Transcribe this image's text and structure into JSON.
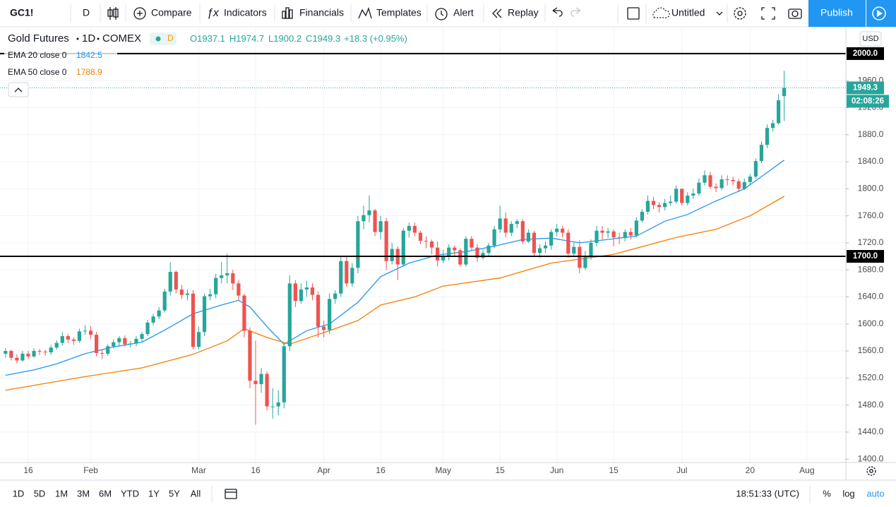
{
  "toolbar": {
    "symbol": "GC1!",
    "interval": "D",
    "compare": "Compare",
    "indicators": "Indicators",
    "financials": "Financials",
    "templates": "Templates",
    "alert": "Alert",
    "replay": "Replay",
    "layout_name": "Untitled",
    "publish": "Publish"
  },
  "bottom_bar": {
    "timeframes": [
      "1D",
      "5D",
      "1M",
      "3M",
      "6M",
      "YTD",
      "1Y",
      "5Y",
      "All"
    ],
    "clock": "18:51:33 (UTC)",
    "percent": "%",
    "log": "log",
    "auto": "auto"
  },
  "chart_data": {
    "type": "candlestick",
    "title": "Gold Futures",
    "interval": "1D",
    "exchange": "COMEX",
    "status_badge": "D",
    "currency": "USD",
    "ohlc_labels": [
      "O",
      "H",
      "L",
      "C"
    ],
    "change_text": "+18.3 (+0.95%)",
    "countdown": "02:08:26",
    "up_color": "#26a69a",
    "down_color": "#ef5350",
    "categories": [
      "Jan 10",
      "Jan 13",
      "Jan 14",
      "Jan 15",
      "Jan 16",
      "Jan 17",
      "Jan 21",
      "Jan 22",
      "Jan 23",
      "Jan 24",
      "Jan 27",
      "Jan 28",
      "Jan 29",
      "Jan 30",
      "Jan 31",
      "Feb 3",
      "Feb 4",
      "Feb 5",
      "Feb 6",
      "Feb 7",
      "Feb 10",
      "Feb 11",
      "Feb 12",
      "Feb 13",
      "Feb 14",
      "Feb 18",
      "Feb 19",
      "Feb 20",
      "Feb 21",
      "Feb 24",
      "Feb 25",
      "Feb 26",
      "Feb 27",
      "Feb 28",
      "Mar 2",
      "Mar 3",
      "Mar 4",
      "Mar 5",
      "Mar 6",
      "Mar 9",
      "Mar 10",
      "Mar 11",
      "Mar 12",
      "Mar 13",
      "Mar 16",
      "Mar 17",
      "Mar 18",
      "Mar 19",
      "Mar 20",
      "Mar 23",
      "Mar 24",
      "Mar 25",
      "Mar 26",
      "Mar 27",
      "Mar 30",
      "Mar 31",
      "Apr 1",
      "Apr 2",
      "Apr 3",
      "Apr 6",
      "Apr 7",
      "Apr 8",
      "Apr 9",
      "Apr 13",
      "Apr 14",
      "Apr 15",
      "Apr 16",
      "Apr 17",
      "Apr 20",
      "Apr 21",
      "Apr 22",
      "Apr 23",
      "Apr 24",
      "Apr 27",
      "Apr 28",
      "Apr 29",
      "Apr 30",
      "May 1",
      "May 4",
      "May 5",
      "May 6",
      "May 7",
      "May 8",
      "May 11",
      "May 12",
      "May 13",
      "May 14",
      "May 15",
      "May 18",
      "May 19",
      "May 20",
      "May 21",
      "May 22",
      "May 26",
      "May 27",
      "May 28",
      "May 29",
      "Jun 1",
      "Jun 2",
      "Jun 3",
      "Jun 4",
      "Jun 5",
      "Jun 8",
      "Jun 9",
      "Jun 10",
      "Jun 11",
      "Jun 12",
      "Jun 15",
      "Jun 16",
      "Jun 17",
      "Jun 18",
      "Jun 19",
      "Jun 22",
      "Jun 23",
      "Jun 24",
      "Jun 25",
      "Jun 26",
      "Jun 29",
      "Jun 30",
      "Jul 1",
      "Jul 2",
      "Jul 6",
      "Jul 7",
      "Jul 8",
      "Jul 9",
      "Jul 10",
      "Jul 13",
      "Jul 14",
      "Jul 15",
      "Jul 16",
      "Jul 17",
      "Jul 20",
      "Jul 21",
      "Jul 22",
      "Jul 23",
      "Jul 24",
      "Jul 27",
      "Jul 28",
      "Jul 29",
      "Jul 30",
      "Jul 31",
      "Aug 3"
    ],
    "open": [
      1556,
      1560,
      1550,
      1546,
      1556,
      1552,
      1560,
      1559,
      1558,
      1565,
      1572,
      1582,
      1577,
      1575,
      1589,
      1590,
      1584,
      1557,
      1556,
      1567,
      1573,
      1579,
      1570,
      1571,
      1578,
      1585,
      1602,
      1611,
      1620,
      1648,
      1677,
      1651,
      1643,
      1645,
      1566,
      1588,
      1641,
      1644,
      1668,
      1672,
      1675,
      1660,
      1642,
      1590,
      1516,
      1511,
      1526,
      1478,
      1478,
      1484,
      1567,
      1660,
      1634,
      1651,
      1654,
      1643,
      1596,
      1591,
      1637,
      1645,
      1693,
      1660,
      1683,
      1752,
      1761,
      1768,
      1736,
      1752,
      1693,
      1711,
      1688,
      1738,
      1745,
      1735,
      1723,
      1722,
      1713,
      1694,
      1700,
      1713,
      1709,
      1688,
      1726,
      1713,
      1698,
      1705,
      1716,
      1740,
      1756,
      1735,
      1748,
      1752,
      1722,
      1735,
      1705,
      1712,
      1716,
      1736,
      1741,
      1735,
      1704,
      1714,
      1683,
      1699,
      1720,
      1738,
      1735,
      1737,
      1728,
      1727,
      1736,
      1731,
      1753,
      1766,
      1782,
      1776,
      1773,
      1779,
      1781,
      1800,
      1779,
      1790,
      1793,
      1809,
      1820,
      1803,
      1801,
      1814,
      1813,
      1811,
      1800,
      1810,
      1818,
      1841,
      1865,
      1890,
      1897,
      1937.1,
      null,
      null,
      null,
      null
    ],
    "high": [
      1564,
      1562,
      1555,
      1560,
      1560,
      1564,
      1563,
      1562,
      1569,
      1576,
      1588,
      1585,
      1580,
      1593,
      1598,
      1597,
      1588,
      1562,
      1570,
      1577,
      1582,
      1583,
      1575,
      1582,
      1588,
      1606,
      1615,
      1625,
      1652,
      1691,
      1679,
      1658,
      1651,
      1650,
      1596,
      1645,
      1652,
      1674,
      1692,
      1704,
      1680,
      1665,
      1645,
      1595,
      1575,
      1535,
      1530,
      1505,
      1502,
      1570,
      1672,
      1665,
      1660,
      1664,
      1660,
      1648,
      1605,
      1645,
      1650,
      1700,
      1700,
      1690,
      1760,
      1775,
      1790,
      1770,
      1760,
      1757,
      1720,
      1715,
      1742,
      1750,
      1750,
      1738,
      1730,
      1725,
      1722,
      1710,
      1718,
      1716,
      1712,
      1730,
      1730,
      1718,
      1710,
      1720,
      1745,
      1775,
      1765,
      1752,
      1755,
      1755,
      1740,
      1738,
      1718,
      1722,
      1740,
      1748,
      1745,
      1740,
      1720,
      1724,
      1708,
      1725,
      1745,
      1745,
      1742,
      1740,
      1735,
      1740,
      1742,
      1758,
      1770,
      1790,
      1788,
      1780,
      1785,
      1790,
      1805,
      1800,
      1795,
      1800,
      1815,
      1827,
      1825,
      1808,
      1820,
      1820,
      1818,
      1815,
      1815,
      1822,
      1845,
      1870,
      1895,
      1902,
      1940,
      1974.7,
      null,
      null,
      null,
      null
    ],
    "low": [
      1550,
      1546,
      1542,
      1544,
      1548,
      1550,
      1554,
      1553,
      1554,
      1562,
      1568,
      1572,
      1569,
      1572,
      1584,
      1578,
      1552,
      1548,
      1553,
      1564,
      1568,
      1566,
      1565,
      1567,
      1574,
      1582,
      1598,
      1607,
      1617,
      1642,
      1645,
      1637,
      1635,
      1562,
      1562,
      1582,
      1635,
      1638,
      1660,
      1660,
      1650,
      1635,
      1580,
      1505,
      1451,
      1498,
      1472,
      1460,
      1465,
      1475,
      1560,
      1625,
      1630,
      1640,
      1635,
      1580,
      1580,
      1585,
      1630,
      1640,
      1655,
      1655,
      1675,
      1740,
      1750,
      1730,
      1725,
      1680,
      1688,
      1665,
      1685,
      1728,
      1730,
      1718,
      1712,
      1703,
      1685,
      1690,
      1694,
      1700,
      1685,
      1685,
      1708,
      1692,
      1695,
      1700,
      1712,
      1735,
      1728,
      1730,
      1742,
      1718,
      1720,
      1700,
      1698,
      1705,
      1710,
      1730,
      1728,
      1698,
      1700,
      1675,
      1680,
      1695,
      1715,
      1725,
      1727,
      1715,
      1718,
      1722,
      1725,
      1728,
      1750,
      1762,
      1770,
      1765,
      1768,
      1775,
      1778,
      1775,
      1775,
      1785,
      1790,
      1805,
      1800,
      1795,
      1798,
      1805,
      1805,
      1795,
      1798,
      1805,
      1815,
      1838,
      1860,
      1885,
      1895,
      1900.2,
      null,
      null,
      null,
      null
    ],
    "close": [
      1560,
      1550,
      1546,
      1556,
      1552,
      1560,
      1559,
      1558,
      1565,
      1572,
      1582,
      1577,
      1575,
      1589,
      1590,
      1584,
      1557,
      1556,
      1567,
      1573,
      1579,
      1570,
      1571,
      1578,
      1585,
      1602,
      1611,
      1620,
      1648,
      1677,
      1651,
      1643,
      1645,
      1566,
      1588,
      1641,
      1644,
      1668,
      1672,
      1675,
      1660,
      1642,
      1590,
      1516,
      1511,
      1526,
      1478,
      1478,
      1484,
      1567,
      1660,
      1634,
      1651,
      1654,
      1643,
      1596,
      1591,
      1637,
      1645,
      1693,
      1660,
      1683,
      1752,
      1761,
      1768,
      1736,
      1752,
      1693,
      1711,
      1688,
      1738,
      1745,
      1735,
      1723,
      1722,
      1713,
      1694,
      1700,
      1713,
      1709,
      1688,
      1726,
      1713,
      1698,
      1705,
      1716,
      1740,
      1756,
      1735,
      1748,
      1752,
      1722,
      1735,
      1705,
      1712,
      1716,
      1736,
      1741,
      1735,
      1704,
      1714,
      1683,
      1699,
      1720,
      1738,
      1735,
      1737,
      1728,
      1727,
      1736,
      1731,
      1753,
      1766,
      1782,
      1776,
      1773,
      1779,
      1781,
      1800,
      1779,
      1790,
      1793,
      1809,
      1820,
      1803,
      1801,
      1814,
      1813,
      1811,
      1800,
      1810,
      1818,
      1841,
      1865,
      1890,
      1897,
      1931,
      1949.3,
      null,
      null,
      null,
      null
    ],
    "series": [
      {
        "name": "EMA 20 close 0",
        "color": "#2196f3",
        "x": [
          "Jan 10",
          "Jan 17",
          "Jan 24",
          "Jan 31",
          "Feb 7",
          "Feb 14",
          "Feb 21",
          "Feb 28",
          "Mar 6",
          "Mar 11",
          "Mar 13",
          "Mar 18",
          "Mar 23",
          "Mar 27",
          "Apr 2",
          "Apr 9",
          "Apr 16",
          "Apr 23",
          "Apr 30",
          "May 7",
          "May 14",
          "May 21",
          "May 29",
          "Jun 5",
          "Jun 12",
          "Jun 19",
          "Jun 26",
          "Jul 2",
          "Jul 10",
          "Jul 17",
          "Jul 22",
          "Jul 28"
        ],
        "values": [
          1524,
          1532,
          1541,
          1556,
          1566,
          1573,
          1591,
          1615,
          1628,
          1635,
          1625,
          1596,
          1570,
          1590,
          1600,
          1632,
          1670,
          1690,
          1702,
          1707,
          1715,
          1725,
          1727,
          1720,
          1725,
          1730,
          1752,
          1762,
          1782,
          1800,
          1818,
          1842.5
        ]
      },
      {
        "name": "EMA 50 close 0",
        "color": "#f57c00",
        "x": [
          "Jan 10",
          "Jan 31",
          "Feb 14",
          "Feb 28",
          "Mar 9",
          "Mar 12",
          "Mar 18",
          "Mar 24",
          "Apr 2",
          "Apr 9",
          "Apr 16",
          "Apr 24",
          "May 1",
          "May 15",
          "May 29",
          "Jun 8",
          "Jun 15",
          "Jun 30",
          "Jul 10",
          "Jul 20",
          "Jul 28"
        ],
        "values": [
          1502,
          1522,
          1535,
          1555,
          1575,
          1593,
          1580,
          1570,
          1590,
          1605,
          1628,
          1640,
          1656,
          1668,
          1690,
          1697,
          1703,
          1728,
          1740,
          1760,
          1788.9
        ]
      }
    ],
    "horizontal_lines": [
      {
        "value": 2000,
        "label": "2000.0"
      },
      {
        "value": 1700,
        "label": "1700.0"
      }
    ],
    "ylim": [
      1395,
      2037.5
    ],
    "yticks": [
      {
        "value": 1400,
        "label": "1400.0"
      },
      {
        "value": 1440,
        "label": "1440.0"
      },
      {
        "value": 1480,
        "label": "1480.0"
      },
      {
        "value": 1520,
        "label": "1520.0"
      },
      {
        "value": 1560,
        "label": "1560.0"
      },
      {
        "value": 1600,
        "label": "1600.0"
      },
      {
        "value": 1640,
        "label": "1640.0"
      },
      {
        "value": 1680,
        "label": "1680.0"
      },
      {
        "value": 1720,
        "label": "1720.0"
      },
      {
        "value": 1760,
        "label": "1760.0"
      },
      {
        "value": 1800,
        "label": "1800.0"
      },
      {
        "value": 1840,
        "label": "1840.0"
      },
      {
        "value": 1880,
        "label": "1880.0"
      },
      {
        "value": 1920,
        "label": "1920.0"
      },
      {
        "value": 1960,
        "label": "1960.0"
      }
    ],
    "x_labels": [
      {
        "at": "Jan 16",
        "label": "16"
      },
      {
        "at": "Feb 3",
        "label": "Feb"
      },
      {
        "at": "Mar 2",
        "label": "Mar"
      },
      {
        "at": "Mar 16",
        "label": "16"
      },
      {
        "at": "Apr 1",
        "label": "Apr"
      },
      {
        "at": "Apr 16",
        "label": "16"
      },
      {
        "at": "May 1",
        "label": "May"
      },
      {
        "at": "May 15",
        "label": "15"
      },
      {
        "at": "Jun 1",
        "label": "Jun"
      },
      {
        "at": "Jun 15",
        "label": "15"
      },
      {
        "at": "Jul 1",
        "label": "Jul"
      },
      {
        "at": "Jul 20",
        "label": "20"
      },
      {
        "at": "Aug 3",
        "label": "Aug"
      }
    ],
    "grid": true
  }
}
